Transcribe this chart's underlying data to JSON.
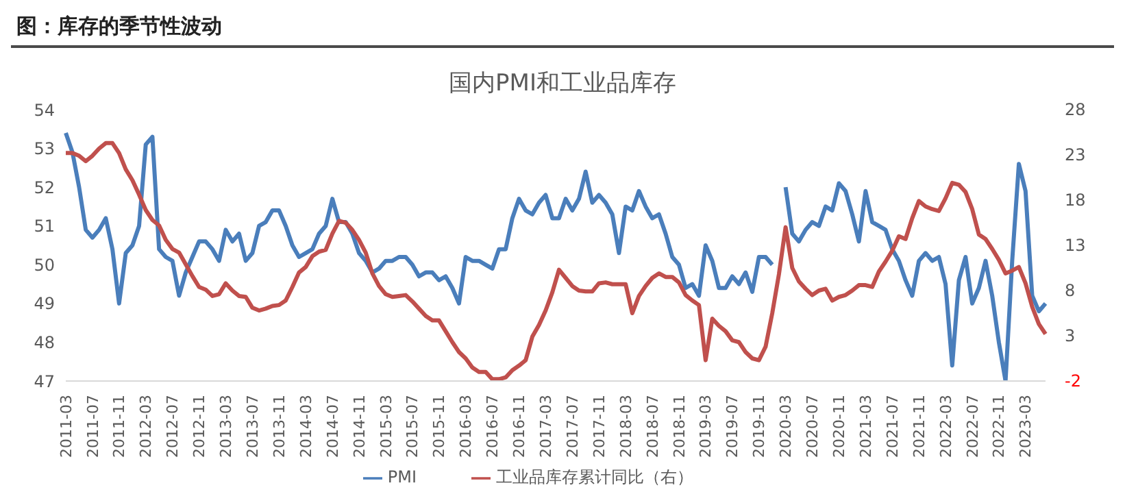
{
  "chart_data": {
    "type": "line",
    "title": "图：库存的季节性波动",
    "subtitle": "国内PMI和工业品库存",
    "categories": [
      "2011-03",
      null,
      null,
      null,
      "2011-07",
      null,
      null,
      null,
      "2011-11",
      null,
      null,
      null,
      "2012-03",
      null,
      null,
      null,
      "2012-07",
      null,
      null,
      null,
      "2012-11",
      null,
      null,
      null,
      "2013-03",
      null,
      null,
      null,
      "2013-07",
      null,
      null,
      null,
      "2013-11",
      null,
      null,
      null,
      "2014-03",
      null,
      null,
      null,
      "2014-07",
      null,
      null,
      null,
      "2014-11",
      null,
      null,
      null,
      "2015-03",
      null,
      null,
      null,
      "2015-07",
      null,
      null,
      null,
      "2015-11",
      null,
      null,
      null,
      "2016-03",
      null,
      null,
      null,
      "2016-07",
      null,
      null,
      null,
      "2016-11",
      null,
      null,
      null,
      "2017-03",
      null,
      null,
      null,
      "2017-07",
      null,
      null,
      null,
      "2017-11",
      null,
      null,
      null,
      "2018-03",
      null,
      null,
      null,
      "2018-07",
      null,
      null,
      null,
      "2018-11",
      null,
      null,
      null,
      "2019-03",
      null,
      null,
      null,
      "2019-07",
      null,
      null,
      null,
      "2019-11",
      null,
      null,
      null,
      "2020-03",
      null,
      null,
      null,
      "2020-07",
      null,
      null,
      null,
      "2020-11",
      null,
      null,
      null,
      "2021-03",
      null,
      null,
      null,
      "2021-07",
      null,
      null,
      null,
      "2021-11",
      null,
      null,
      null,
      "2022-03",
      null,
      null,
      null,
      "2022-07",
      null,
      null,
      null,
      "2022-11",
      null,
      null,
      null,
      "2023-03",
      null,
      null,
      null
    ],
    "series": [
      {
        "name": "PMI",
        "color": "#4a7ebb",
        "values": [
          53.4,
          52.9,
          52.0,
          50.9,
          50.7,
          50.9,
          51.2,
          50.4,
          49.0,
          50.3,
          50.5,
          51.0,
          53.1,
          53.3,
          50.4,
          50.2,
          50.1,
          49.2,
          49.8,
          50.2,
          50.6,
          50.6,
          50.4,
          50.1,
          50.9,
          50.6,
          50.8,
          50.1,
          50.3,
          51.0,
          51.1,
          51.4,
          51.4,
          51.0,
          50.5,
          50.2,
          50.3,
          50.4,
          50.8,
          51.0,
          51.7,
          51.1,
          51.1,
          50.8,
          50.3,
          50.1,
          49.8,
          49.9,
          50.1,
          50.1,
          50.2,
          50.2,
          50.0,
          49.7,
          49.8,
          49.8,
          49.6,
          49.7,
          49.4,
          49.0,
          50.2,
          50.1,
          50.1,
          50.0,
          49.9,
          50.4,
          50.4,
          51.2,
          51.7,
          51.4,
          51.3,
          51.6,
          51.8,
          51.2,
          51.2,
          51.7,
          51.4,
          51.7,
          52.4,
          51.6,
          51.8,
          51.6,
          51.3,
          50.3,
          51.5,
          51.4,
          51.9,
          51.5,
          51.2,
          51.3,
          50.8,
          50.2,
          50.0,
          49.4,
          49.5,
          49.2,
          50.5,
          50.1,
          49.4,
          49.4,
          49.7,
          49.5,
          49.8,
          49.3,
          50.2,
          50.2,
          50.0,
          null,
          52.0,
          50.8,
          50.6,
          50.9,
          51.1,
          51.0,
          51.5,
          51.4,
          52.1,
          51.9,
          51.3,
          50.6,
          51.9,
          51.1,
          51.0,
          50.9,
          50.4,
          50.1,
          49.6,
          49.2,
          50.1,
          50.3,
          50.1,
          50.2,
          49.5,
          47.4,
          49.6,
          50.2,
          49.0,
          49.4,
          50.1,
          49.2,
          48.0,
          47.0,
          50.1,
          52.6,
          51.9,
          49.2,
          48.8,
          49.0
        ]
      },
      {
        "name": "工业品库存累计同比（右）",
        "color": "#c0504d",
        "axis": "y2",
        "values": [
          23.2,
          23.2,
          22.9,
          22.3,
          22.9,
          23.7,
          24.3,
          24.3,
          23.2,
          21.4,
          20.2,
          18.6,
          16.9,
          15.8,
          15.2,
          13.6,
          12.6,
          12.2,
          10.9,
          9.6,
          8.4,
          8.1,
          7.4,
          7.6,
          8.8,
          8.0,
          7.4,
          7.3,
          6.1,
          5.8,
          6.0,
          6.3,
          6.4,
          6.9,
          8.4,
          10.0,
          10.6,
          11.8,
          12.3,
          12.5,
          14.3,
          15.7,
          15.5,
          14.7,
          13.6,
          12.2,
          9.9,
          8.5,
          7.6,
          7.3,
          7.4,
          7.5,
          6.8,
          6.0,
          5.2,
          4.7,
          4.7,
          3.5,
          2.3,
          1.2,
          0.5,
          -0.5,
          -1.0,
          -1.0,
          -1.8,
          -1.8,
          -1.6,
          -0.8,
          -0.3,
          0.3,
          2.9,
          4.2,
          5.8,
          7.8,
          10.3,
          9.4,
          8.5,
          8.0,
          7.9,
          7.9,
          8.8,
          8.9,
          8.7,
          8.7,
          8.7,
          5.5,
          7.4,
          8.5,
          9.4,
          9.9,
          9.5,
          9.5,
          8.9,
          7.5,
          6.9,
          6.4,
          0.3,
          4.9,
          4.1,
          3.5,
          2.5,
          2.3,
          1.2,
          0.5,
          0.3,
          1.8,
          5.5,
          9.8,
          15.0,
          10.5,
          9.0,
          8.2,
          7.5,
          8.0,
          8.2,
          6.9,
          7.3,
          7.5,
          8.0,
          8.6,
          8.6,
          8.4,
          10.1,
          11.2,
          12.4,
          14.0,
          13.7,
          16.0,
          17.9,
          17.3,
          17.0,
          16.8,
          18.2,
          19.9,
          19.7,
          18.9,
          17.0,
          14.2,
          13.7,
          12.6,
          11.4,
          9.9,
          10.2,
          10.6,
          8.8,
          6.2,
          4.3,
          3.2
        ]
      }
    ],
    "ylim": [
      47,
      54
    ],
    "yticks": [
      47,
      48,
      49,
      50,
      51,
      52,
      53,
      54
    ],
    "y2lim": [
      -2,
      28
    ],
    "y2ticks": [
      -2,
      3,
      8,
      13,
      18,
      23,
      28
    ],
    "grid": false,
    "legend": "bottom",
    "marker": "none",
    "line_style": "solid"
  }
}
